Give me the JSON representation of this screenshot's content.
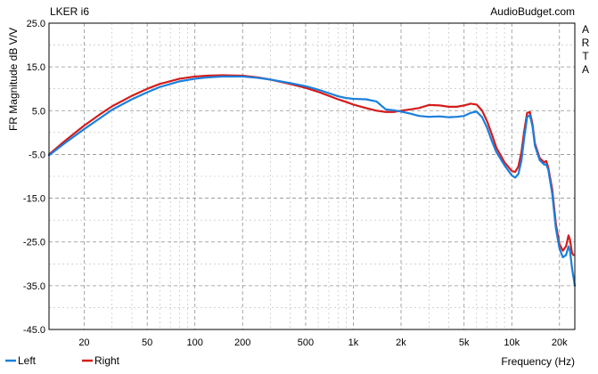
{
  "chart_data": {
    "type": "line",
    "title": "LKER i6",
    "source": "AudioBudget.com",
    "watermark": [
      "A",
      "R",
      "T",
      "A"
    ],
    "xlabel": "Frequency (Hz)",
    "ylabel": "FR Magnitude dB V/V",
    "x_scale": "log",
    "xlim": [
      12,
      25000
    ],
    "ylim": [
      -45,
      25
    ],
    "x_ticks": [
      {
        "value": 20,
        "label": "20"
      },
      {
        "value": 50,
        "label": "50"
      },
      {
        "value": 100,
        "label": "100"
      },
      {
        "value": 200,
        "label": "200"
      },
      {
        "value": 500,
        "label": "500"
      },
      {
        "value": 1000,
        "label": "1k"
      },
      {
        "value": 2000,
        "label": "2k"
      },
      {
        "value": 5000,
        "label": "5k"
      },
      {
        "value": 10000,
        "label": "10k"
      },
      {
        "value": 20000,
        "label": "20k"
      }
    ],
    "y_ticks": [
      {
        "value": 25,
        "label": "25.0"
      },
      {
        "value": 15,
        "label": "15.0"
      },
      {
        "value": 5,
        "label": "5.0"
      },
      {
        "value": -5,
        "label": "-5.0"
      },
      {
        "value": -15,
        "label": "-15.0"
      },
      {
        "value": -25,
        "label": "-25.0"
      },
      {
        "value": -35,
        "label": "-35.0"
      },
      {
        "value": -45,
        "label": "-45.0"
      }
    ],
    "grid": true,
    "legend_position": "bottom-left",
    "series": [
      {
        "name": "Left",
        "color": "#1a7fdc",
        "points": [
          [
            12,
            -5.2
          ],
          [
            15,
            -2.5
          ],
          [
            20,
            0.8
          ],
          [
            25,
            3.2
          ],
          [
            30,
            5.2
          ],
          [
            40,
            7.6
          ],
          [
            50,
            9.2
          ],
          [
            60,
            10.4
          ],
          [
            80,
            11.7
          ],
          [
            100,
            12.3
          ],
          [
            120,
            12.6
          ],
          [
            150,
            12.8
          ],
          [
            200,
            12.8
          ],
          [
            250,
            12.5
          ],
          [
            300,
            12.1
          ],
          [
            400,
            11.3
          ],
          [
            500,
            10.6
          ],
          [
            600,
            9.8
          ],
          [
            700,
            9.0
          ],
          [
            800,
            8.3
          ],
          [
            900,
            7.9
          ],
          [
            1000,
            7.7
          ],
          [
            1200,
            7.6
          ],
          [
            1400,
            7.1
          ],
          [
            1600,
            5.3
          ],
          [
            1800,
            5.1
          ],
          [
            2000,
            4.8
          ],
          [
            2300,
            4.3
          ],
          [
            2600,
            3.8
          ],
          [
            3000,
            3.6
          ],
          [
            3500,
            3.7
          ],
          [
            4000,
            3.5
          ],
          [
            4500,
            3.6
          ],
          [
            5000,
            3.8
          ],
          [
            5500,
            4.5
          ],
          [
            6000,
            4.8
          ],
          [
            6500,
            3.5
          ],
          [
            7000,
            1.0
          ],
          [
            7500,
            -2.0
          ],
          [
            8000,
            -4.5
          ],
          [
            9000,
            -7.5
          ],
          [
            10000,
            -9.8
          ],
          [
            10500,
            -10.3
          ],
          [
            11000,
            -9.5
          ],
          [
            11500,
            -6.5
          ],
          [
            12000,
            -1.0
          ],
          [
            12500,
            3.5
          ],
          [
            13000,
            4.0
          ],
          [
            13500,
            1.5
          ],
          [
            14000,
            -3.0
          ],
          [
            15000,
            -6.3
          ],
          [
            16000,
            -7.3
          ],
          [
            16500,
            -7.3
          ],
          [
            17000,
            -8.5
          ],
          [
            18000,
            -14.0
          ],
          [
            19000,
            -22.0
          ],
          [
            20000,
            -26.5
          ],
          [
            21000,
            -28.5
          ],
          [
            22000,
            -28.0
          ],
          [
            22800,
            -26.0
          ],
          [
            23300,
            -27.0
          ],
          [
            24000,
            -31.0
          ],
          [
            25000,
            -35.0
          ]
        ]
      },
      {
        "name": "Right",
        "color": "#d41c1c",
        "points": [
          [
            12,
            -5.0
          ],
          [
            15,
            -2.0
          ],
          [
            20,
            1.6
          ],
          [
            25,
            4.1
          ],
          [
            30,
            6.0
          ],
          [
            40,
            8.4
          ],
          [
            50,
            10.0
          ],
          [
            60,
            11.1
          ],
          [
            80,
            12.3
          ],
          [
            100,
            12.8
          ],
          [
            120,
            13.0
          ],
          [
            150,
            13.1
          ],
          [
            200,
            13.0
          ],
          [
            250,
            12.6
          ],
          [
            300,
            12.1
          ],
          [
            400,
            11.1
          ],
          [
            500,
            10.2
          ],
          [
            600,
            9.3
          ],
          [
            700,
            8.4
          ],
          [
            800,
            7.6
          ],
          [
            900,
            7.0
          ],
          [
            1000,
            6.4
          ],
          [
            1200,
            5.6
          ],
          [
            1400,
            5.0
          ],
          [
            1600,
            4.7
          ],
          [
            1800,
            4.7
          ],
          [
            2000,
            5.0
          ],
          [
            2300,
            5.3
          ],
          [
            2600,
            5.6
          ],
          [
            3000,
            6.3
          ],
          [
            3500,
            6.2
          ],
          [
            4000,
            5.9
          ],
          [
            4500,
            5.9
          ],
          [
            5000,
            6.2
          ],
          [
            5500,
            6.6
          ],
          [
            6000,
            6.4
          ],
          [
            6500,
            5.0
          ],
          [
            7000,
            2.5
          ],
          [
            7500,
            -0.5
          ],
          [
            8000,
            -3.5
          ],
          [
            9000,
            -6.8
          ],
          [
            10000,
            -8.8
          ],
          [
            10500,
            -9.0
          ],
          [
            11000,
            -7.8
          ],
          [
            11500,
            -4.5
          ],
          [
            12000,
            0.5
          ],
          [
            12500,
            4.5
          ],
          [
            13000,
            4.7
          ],
          [
            13500,
            2.0
          ],
          [
            14000,
            -2.5
          ],
          [
            15000,
            -5.8
          ],
          [
            16000,
            -6.8
          ],
          [
            16500,
            -6.5
          ],
          [
            17000,
            -8.0
          ],
          [
            18000,
            -13.0
          ],
          [
            19000,
            -21.0
          ],
          [
            20000,
            -25.5
          ],
          [
            21000,
            -27.0
          ],
          [
            22000,
            -26.0
          ],
          [
            22800,
            -23.5
          ],
          [
            23300,
            -24.5
          ],
          [
            24000,
            -27.5
          ],
          [
            24500,
            -28.0
          ]
        ]
      }
    ]
  }
}
